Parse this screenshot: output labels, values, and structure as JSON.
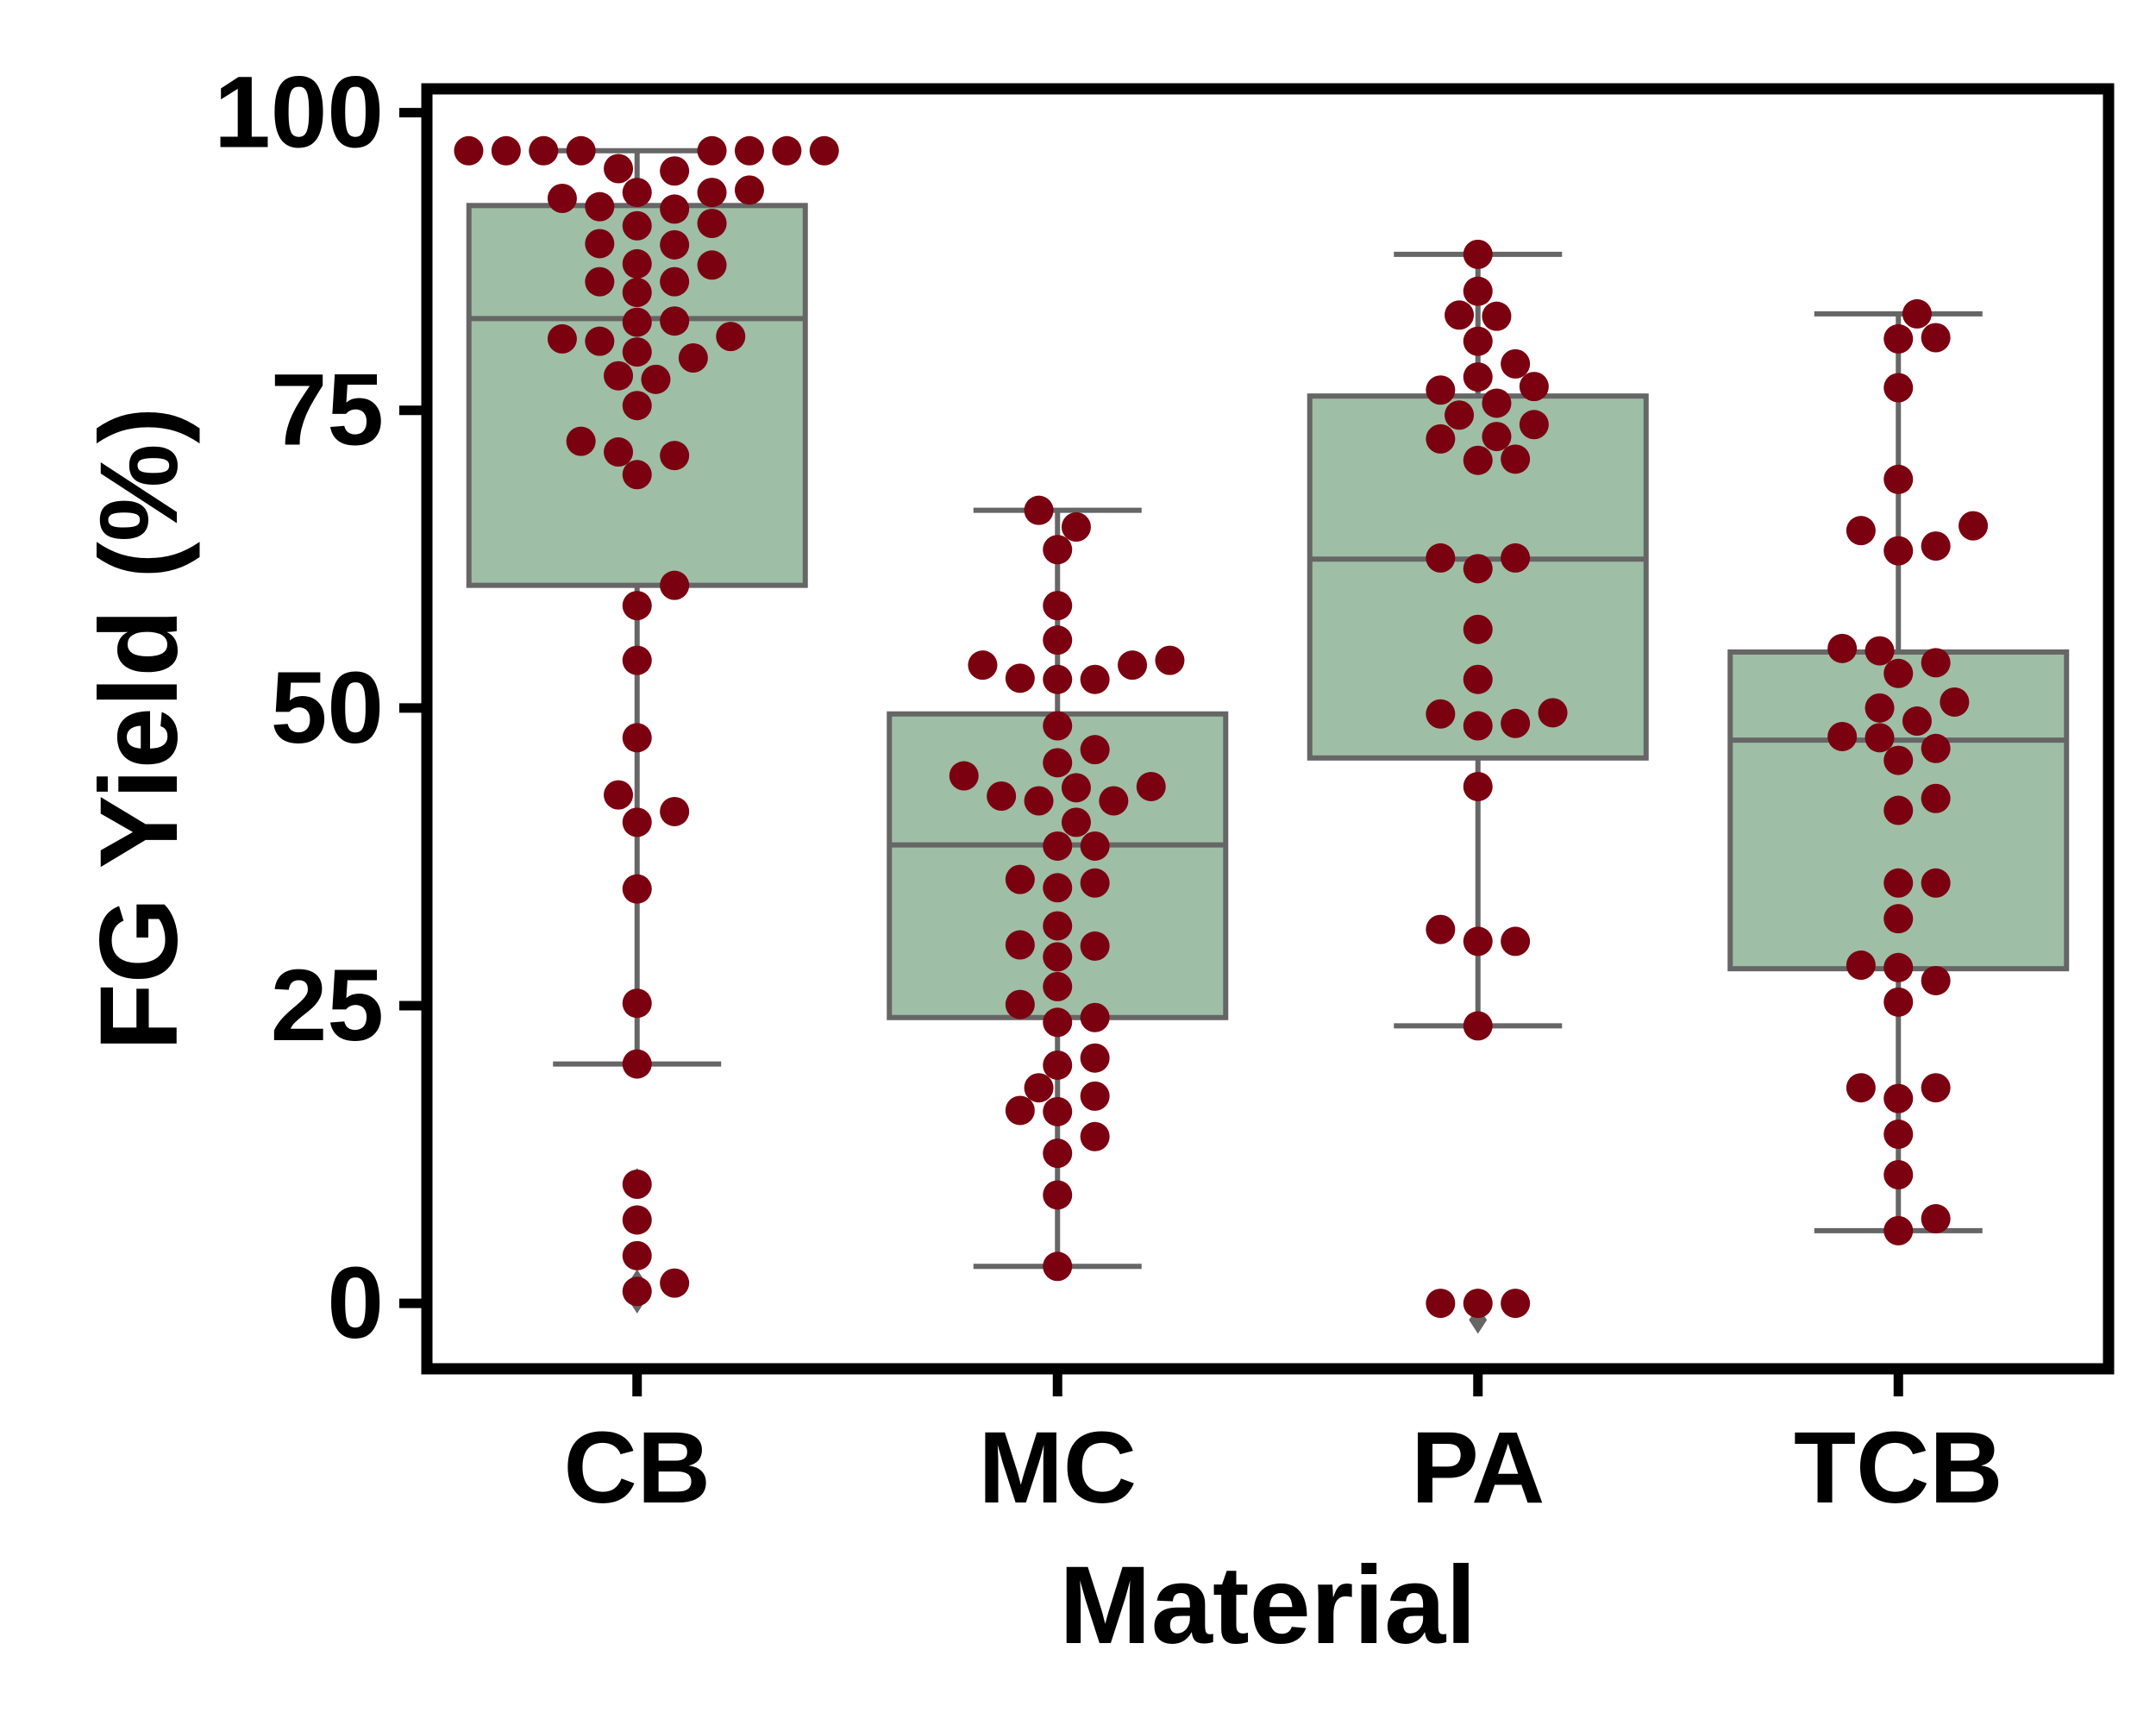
{
  "chart_data": {
    "type": "box",
    "title": "",
    "xlabel": "Material",
    "ylabel": "FG Yield (%)",
    "categories": [
      "CB",
      "MC",
      "PA",
      "TCB"
    ],
    "ylim": [
      -5.5,
      102
    ],
    "yticks": [
      0,
      25,
      50,
      75,
      100
    ],
    "grid": false,
    "colors": {
      "box_fill": "#9fbea6",
      "box_edge": "#666666",
      "point": "#7b0010",
      "axis": "#000000"
    },
    "boxes": [
      {
        "category": "CB",
        "q1": 60.3,
        "median": 82.7,
        "q3": 92.2,
        "whisker_low": 20.1,
        "whisker_high": 96.8,
        "fliers": [
          10.2,
          7.1,
          4.0,
          1.7,
          1.1,
          0.3
        ]
      },
      {
        "category": "MC",
        "q1": 24.0,
        "median": 38.5,
        "q3": 49.5,
        "whisker_low": 3.1,
        "whisker_high": 66.6,
        "fliers": []
      },
      {
        "category": "PA",
        "q1": 45.8,
        "median": 62.5,
        "q3": 76.2,
        "whisker_low": 23.3,
        "whisker_high": 88.1,
        "fliers": [
          -0.1,
          -1.4
        ]
      },
      {
        "category": "TCB",
        "q1": 28.1,
        "median": 47.3,
        "q3": 54.7,
        "whisker_low": 6.1,
        "whisker_high": 83.1,
        "fliers": []
      }
    ],
    "points": {
      "CB": [
        96.8,
        96.8,
        96.8,
        96.8,
        96.8,
        96.8,
        96.8,
        96.8,
        95.3,
        95.1,
        93.5,
        93.3,
        93.3,
        92.8,
        92.1,
        91.9,
        90.7,
        90.5,
        89.0,
        88.9,
        87.3,
        87.2,
        85.8,
        85.8,
        84.9,
        82.4,
        82.5,
        81.2,
        81.0,
        80.8,
        79.9,
        79.4,
        77.9,
        77.6,
        75.4,
        72.4,
        71.5,
        71.2,
        69.6,
        60.3,
        58.6,
        54.0,
        47.5,
        42.7,
        41.3,
        40.4,
        34.8,
        25.2,
        20.1,
        10.0,
        7.0,
        4.0,
        1.7,
        1.0
      ],
      "MC": [
        66.6,
        65.2,
        63.3,
        58.6,
        55.7,
        54.0,
        53.6,
        53.6,
        52.4,
        52.4,
        52.5,
        48.5,
        46.5,
        45.4,
        44.3,
        43.3,
        43.4,
        42.6,
        42.2,
        42.2,
        40.4,
        38.4,
        38.4,
        35.6,
        35.3,
        34.9,
        31.7,
        30.1,
        30.0,
        29.1,
        26.6,
        25.1,
        24.0,
        23.6,
        20.6,
        20.0,
        18.1,
        17.4,
        16.1,
        16.2,
        14.0,
        12.6,
        9.1,
        3.1
      ],
      "PA": [
        88.1,
        85.0,
        83.0,
        82.9,
        80.8,
        78.9,
        77.8,
        77.0,
        76.7,
        75.6,
        74.6,
        73.8,
        72.8,
        72.6,
        70.9,
        70.8,
        62.6,
        62.6,
        61.7,
        56.6,
        52.4,
        49.6,
        49.5,
        48.7,
        48.5,
        43.4,
        31.4,
        30.4,
        30.4,
        23.3,
        0.0,
        0.0,
        0.0
      ],
      "TCB": [
        83.1,
        81.1,
        81.0,
        76.9,
        69.2,
        65.3,
        64.9,
        63.6,
        63.2,
        55.0,
        54.8,
        53.8,
        52.9,
        50.5,
        50.0,
        48.9,
        47.6,
        47.5,
        46.6,
        45.6,
        42.4,
        41.4,
        35.3,
        35.3,
        32.3,
        28.4,
        28.2,
        27.1,
        25.3,
        18.1,
        18.1,
        17.2,
        14.2,
        10.8,
        7.1,
        6.1
      ]
    }
  }
}
